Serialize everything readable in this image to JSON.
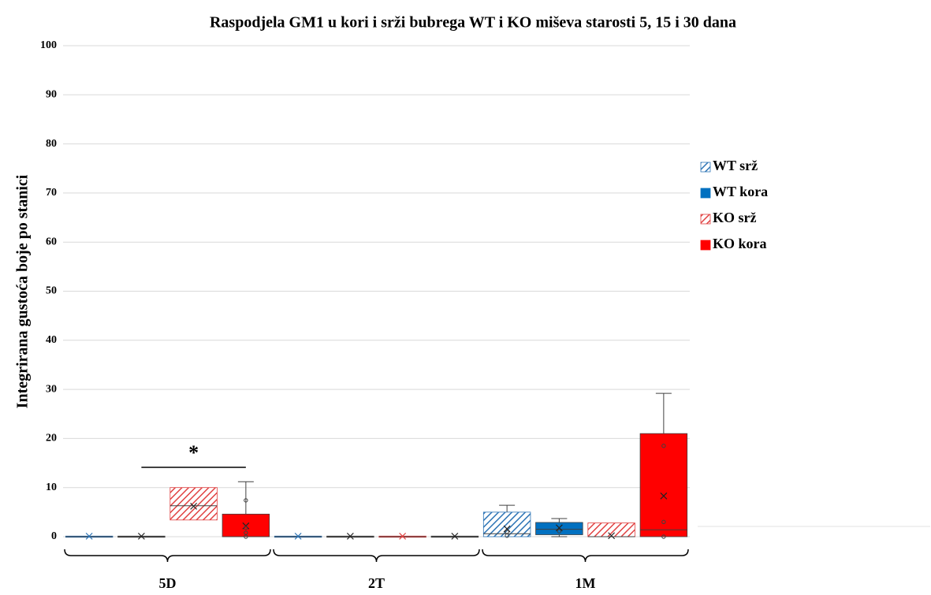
{
  "chart_data": {
    "type": "box",
    "title": "Raspodjela GM1 u kori i srži bubrega WT i KO miševa starosti 5, 15 i 30 dana",
    "y_label": "Integrirana gustoća boje po stanici",
    "categories": [
      "5D",
      "2T",
      "1M"
    ],
    "ylim": [
      0,
      100
    ],
    "yticks": [
      0,
      10,
      20,
      30,
      40,
      50,
      60,
      70,
      80,
      90,
      100
    ],
    "grid": true,
    "legend": "right",
    "annotation": "*",
    "series": [
      {
        "name": "WT srž",
        "color": "#2e75b6",
        "hatched": true,
        "boxes": [
          {
            "min": 0,
            "q1": 0,
            "median": 0,
            "q3": 0,
            "max": 0,
            "mean": 0.1,
            "points": []
          },
          {
            "min": 0,
            "q1": 0,
            "median": 0,
            "q3": 0,
            "max": 0,
            "mean": 0.1,
            "points": []
          },
          {
            "min": 0,
            "q1": 0,
            "median": 0.6,
            "q3": 5,
            "max": 6.4,
            "mean": 1.6,
            "points": [
              1,
              0.2
            ]
          }
        ]
      },
      {
        "name": "WT kora",
        "color": "#0070c0",
        "hatched": false,
        "boxes": [
          {
            "min": 0,
            "q1": 0,
            "median": 0,
            "q3": 0,
            "max": 0,
            "mean": 0.1,
            "points": []
          },
          {
            "min": 0,
            "q1": 0,
            "median": 0,
            "q3": 0,
            "max": 0,
            "mean": 0.1,
            "points": []
          },
          {
            "min": 0,
            "q1": 0.4,
            "median": 1.5,
            "q3": 2.9,
            "max": 3.7,
            "mean": 1.8,
            "points": [
              1.1
            ]
          }
        ]
      },
      {
        "name": "KO srž",
        "color": "#e04040",
        "hatched": true,
        "boxes": [
          {
            "min": 3.4,
            "q1": 3.4,
            "median": 6.3,
            "q3": 10,
            "max": 10,
            "mean": 6.2,
            "points": []
          },
          {
            "min": 0,
            "q1": 0,
            "median": 0,
            "q3": 0,
            "max": 0,
            "mean": 0.1,
            "points": []
          },
          {
            "min": 0,
            "q1": 0,
            "median": 0,
            "q3": 2.8,
            "max": 2.8,
            "mean": 0.2,
            "points": []
          }
        ]
      },
      {
        "name": "KO kora",
        "color": "#ff0000",
        "hatched": false,
        "boxes": [
          {
            "min": 0,
            "q1": 0,
            "median": 0,
            "q3": 4.6,
            "max": 11.2,
            "mean": 2.2,
            "points": [
              7.4,
              1.8,
              0.8,
              0
            ]
          },
          {
            "min": 0,
            "q1": 0,
            "median": 0,
            "q3": 0,
            "max": 0,
            "mean": 0.1,
            "points": []
          },
          {
            "min": 0,
            "q1": 0,
            "median": 1.4,
            "q3": 21,
            "max": 29.2,
            "mean": 8.3,
            "points": [
              18.5,
              3,
              0
            ]
          }
        ]
      }
    ]
  }
}
